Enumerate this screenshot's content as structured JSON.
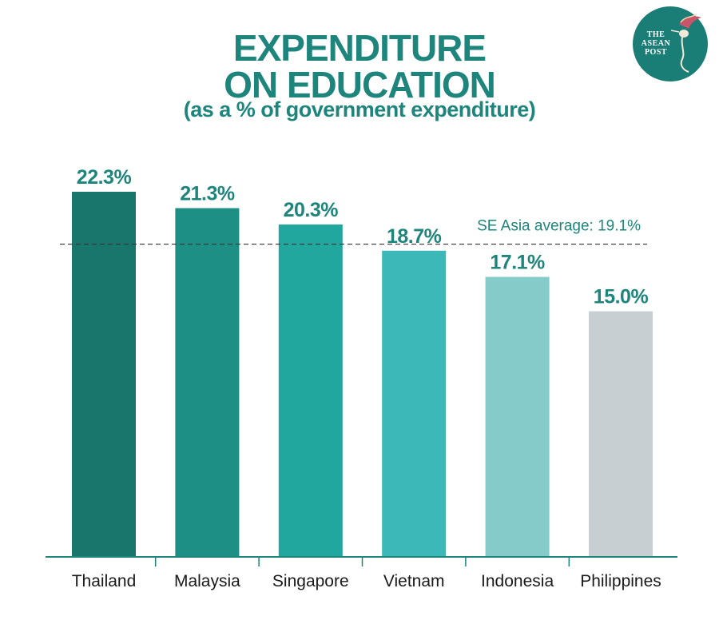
{
  "header": {
    "title_line1": "EXPENDITURE",
    "title_line2": "ON EDUCATION",
    "subtitle": "(as a % of government expenditure)"
  },
  "logo": {
    "text_line1": "THE",
    "text_line2": "ASEAN",
    "text_line3": "POST",
    "icon": "hummingbird-icon",
    "bg_color": "#1a7e76"
  },
  "chart_data": {
    "type": "bar",
    "categories": [
      "Thailand",
      "Malaysia",
      "Singapore",
      "Vietnam",
      "Indonesia",
      "Philippines"
    ],
    "values": [
      22.3,
      21.3,
      20.3,
      18.7,
      17.1,
      15.0
    ],
    "value_labels": [
      "22.3%",
      "21.3%",
      "20.3%",
      "18.7%",
      "17.1%",
      "15.0%"
    ],
    "colors": [
      "#19766d",
      "#1e8f85",
      "#21a79e",
      "#3db8b8",
      "#84cbc9",
      "#c7cfd2"
    ],
    "reference_line": {
      "value": 19.1,
      "label": "SE Asia average: 19.1%"
    },
    "ylim": [
      0,
      22.3
    ],
    "grid": false,
    "legend": "none",
    "title": "EXPENDITURE ON EDUCATION",
    "subtitle": "(as a % of government expenditure)",
    "xlabel": "",
    "ylabel": ""
  },
  "colors": {
    "accent": "#1d857c",
    "axis": "#1d857c",
    "reference_line": "#333333"
  }
}
